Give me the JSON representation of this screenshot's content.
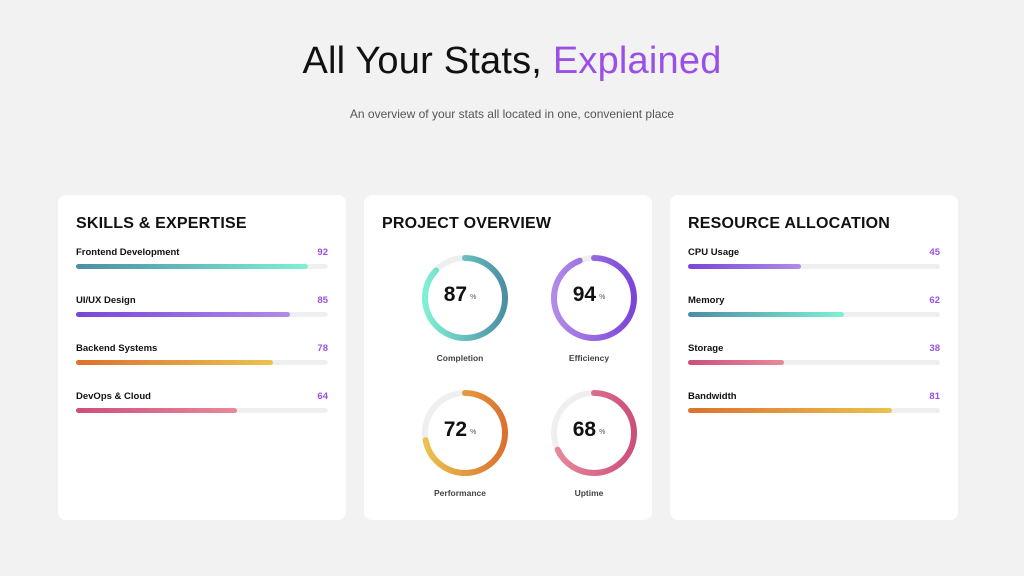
{
  "header": {
    "title_main": "All Your Stats,",
    "title_accent": "Explained",
    "subtitle": "An overview of your stats all located in one, convenient place"
  },
  "colors": {
    "accent": "#9a50e6",
    "teal": [
      "#4b8ea5",
      "#80f0d4"
    ],
    "purple": [
      "#7a45d8",
      "#b28be8"
    ],
    "orange": [
      "#db7130",
      "#ecc24e"
    ],
    "pink": [
      "#cc4f7c",
      "#e88a9b"
    ]
  },
  "skills": {
    "title": "SKILLS & EXPERTISE",
    "items": [
      {
        "label": "Frontend Development",
        "value": "92",
        "percent": 92,
        "color": "teal"
      },
      {
        "label": "UI/UX Design",
        "value": "85",
        "percent": 85,
        "color": "purple"
      },
      {
        "label": "Backend Systems",
        "value": "78",
        "percent": 78,
        "color": "orange"
      },
      {
        "label": "DevOps & Cloud",
        "value": "64",
        "percent": 64,
        "color": "pink"
      }
    ]
  },
  "project": {
    "title": "PROJECT OVERVIEW",
    "gauges": [
      {
        "value": "87",
        "unit": "%",
        "label": "Completion",
        "percent": 87,
        "color": "teal"
      },
      {
        "value": "94",
        "unit": "%",
        "label": "Efficiency",
        "percent": 94,
        "color": "purple"
      },
      {
        "value": "72",
        "unit": "%",
        "label": "Performance",
        "percent": 72,
        "color": "orange"
      },
      {
        "value": "68",
        "unit": "%",
        "label": "Uptime",
        "percent": 68,
        "color": "pink"
      }
    ]
  },
  "resources": {
    "title": "RESOURCE ALLOCATION",
    "items": [
      {
        "label": "CPU Usage",
        "value": "45",
        "percent": 45,
        "color": "purple"
      },
      {
        "label": "Memory",
        "value": "62",
        "percent": 62,
        "color": "teal"
      },
      {
        "label": "Storage",
        "value": "38",
        "percent": 38,
        "color": "pink"
      },
      {
        "label": "Bandwidth",
        "value": "81",
        "percent": 81,
        "color": "orange"
      }
    ]
  }
}
